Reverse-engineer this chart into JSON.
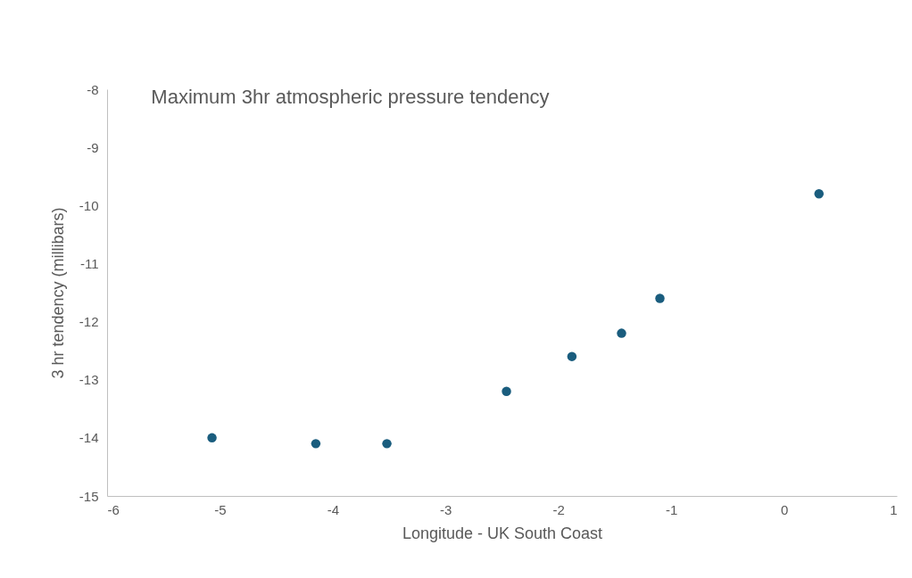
{
  "chart_data": {
    "type": "scatter",
    "title": "Maximum 3hr atmospheric pressure tendency",
    "xlabel": "Longitude - UK South Coast",
    "ylabel": "3 hr tendency (millibars)",
    "x": [
      -5.07,
      -4.15,
      -3.52,
      -2.46,
      -1.88,
      -1.44,
      -1.1,
      0.31
    ],
    "series": [
      {
        "color": "#1a5d7e",
        "values": [
          -14.0,
          -14.1,
          -14.1,
          -13.2,
          -12.6,
          -12.2,
          -11.6,
          -9.8
        ]
      }
    ],
    "xlim": [
      -6,
      1
    ],
    "xticks": [
      -6,
      -5,
      -4,
      -3,
      -2,
      -1,
      0,
      1
    ],
    "ylim": [
      -15,
      -8
    ],
    "yticks": [
      -15,
      -14,
      -13,
      -12,
      -11,
      -10,
      -9,
      -8
    ],
    "grid": false,
    "marker": "circle"
  }
}
